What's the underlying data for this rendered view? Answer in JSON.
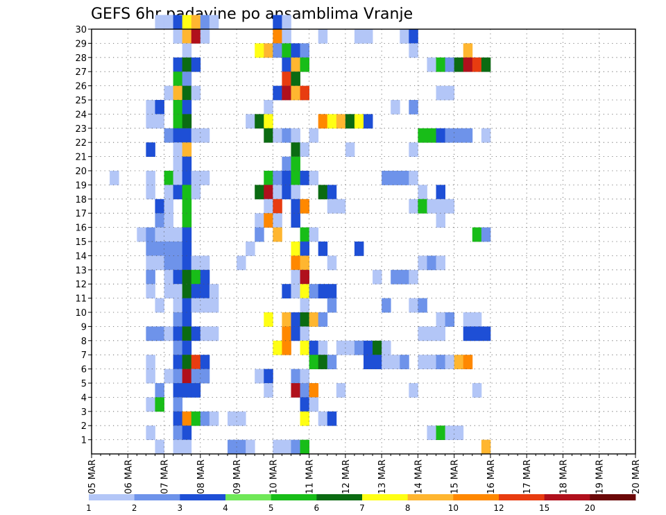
{
  "chart_data": {
    "type": "heatmap",
    "title": "GEFS 6hr padavine po ansamblima Vranje",
    "x_ticks": [
      "05 MAR",
      "06 MAR",
      "07 MAR",
      "08 MAR",
      "09 MAR",
      "10 MAR",
      "11 MAR",
      "12 MAR",
      "13 MAR",
      "14 MAR",
      "15 MAR",
      "16 MAR",
      "17 MAR",
      "18 MAR",
      "19 MAR",
      "20 MAR"
    ],
    "y_ticks": [
      "1",
      "2",
      "3",
      "4",
      "5",
      "6",
      "7",
      "8",
      "9",
      "10",
      "11",
      "12",
      "13",
      "14",
      "15",
      "16",
      "17",
      "18",
      "19",
      "20",
      "21",
      "22",
      "23",
      "24",
      "25",
      "26",
      "27",
      "28",
      "29",
      "30"
    ],
    "y_range": [
      0,
      30
    ],
    "grid": true,
    "legend": {
      "placement": "bottom",
      "labels": [
        "1",
        "2",
        "3",
        "4",
        "5",
        "6",
        "7",
        "8",
        "10",
        "12",
        "15",
        "20"
      ],
      "colors": [
        "#b3c6f7",
        "#6e93ea",
        "#1e4fd6",
        "#70e858",
        "#18bd18",
        "#0b6b12",
        "#ffff14",
        "#ffb630",
        "#ff8800",
        "#e83c10",
        "#b0101c",
        "#6b0808"
      ]
    },
    "cells_note": "x = forecast step index (6-hour steps starting 05 MAR 00z), y = ensemble member, c = color class index into legend colors",
    "cells": [
      [
        7,
        30,
        1
      ],
      [
        8,
        30,
        2
      ],
      [
        8,
        30,
        1
      ],
      [
        9,
        30,
        3
      ],
      [
        10,
        30,
        7
      ],
      [
        11,
        30,
        8
      ],
      [
        12,
        30,
        2
      ],
      [
        13,
        30,
        1
      ],
      [
        20,
        30,
        3
      ],
      [
        21,
        30,
        1
      ],
      [
        9,
        29,
        1
      ],
      [
        10,
        29,
        8
      ],
      [
        11,
        29,
        11
      ],
      [
        12,
        29,
        1
      ],
      [
        20,
        29,
        9
      ],
      [
        21,
        29,
        1
      ],
      [
        25,
        29,
        1
      ],
      [
        29,
        29,
        1
      ],
      [
        30,
        29,
        1
      ],
      [
        34,
        29,
        1
      ],
      [
        35,
        29,
        3
      ],
      [
        10,
        28,
        1
      ],
      [
        18,
        28,
        7
      ],
      [
        19,
        28,
        8
      ],
      [
        20,
        28,
        2
      ],
      [
        21,
        28,
        5
      ],
      [
        22,
        28,
        3
      ],
      [
        23,
        28,
        2
      ],
      [
        35,
        28,
        1
      ],
      [
        41,
        28,
        8
      ],
      [
        9,
        27,
        3
      ],
      [
        10,
        27,
        6
      ],
      [
        11,
        27,
        3
      ],
      [
        21,
        27,
        3
      ],
      [
        22,
        27,
        8
      ],
      [
        23,
        27,
        5
      ],
      [
        37,
        27,
        1
      ],
      [
        38,
        27,
        5
      ],
      [
        39,
        27,
        2
      ],
      [
        40,
        27,
        6
      ],
      [
        41,
        27,
        11
      ],
      [
        42,
        27,
        10
      ],
      [
        43,
        27,
        6
      ],
      [
        9,
        26,
        5
      ],
      [
        10,
        26,
        2
      ],
      [
        21,
        26,
        10
      ],
      [
        22,
        26,
        6
      ],
      [
        8,
        25,
        1
      ],
      [
        9,
        25,
        8
      ],
      [
        10,
        25,
        6
      ],
      [
        11,
        25,
        1
      ],
      [
        20,
        25,
        3
      ],
      [
        21,
        25,
        11
      ],
      [
        22,
        25,
        8
      ],
      [
        23,
        25,
        10
      ],
      [
        38,
        25,
        1
      ],
      [
        39,
        25,
        1
      ],
      [
        6,
        24,
        1
      ],
      [
        7,
        24,
        3
      ],
      [
        9,
        24,
        5
      ],
      [
        10,
        24,
        3
      ],
      [
        19,
        24,
        1
      ],
      [
        33,
        24,
        1
      ],
      [
        35,
        24,
        2
      ],
      [
        6,
        23,
        1
      ],
      [
        7,
        23,
        1
      ],
      [
        9,
        23,
        5
      ],
      [
        10,
        23,
        6
      ],
      [
        17,
        23,
        1
      ],
      [
        18,
        23,
        6
      ],
      [
        19,
        23,
        7
      ],
      [
        25,
        23,
        9
      ],
      [
        26,
        23,
        7
      ],
      [
        27,
        23,
        8
      ],
      [
        28,
        23,
        6
      ],
      [
        29,
        23,
        7
      ],
      [
        30,
        23,
        3
      ],
      [
        8,
        22,
        2
      ],
      [
        9,
        22,
        3
      ],
      [
        10,
        22,
        3
      ],
      [
        11,
        22,
        1
      ],
      [
        12,
        22,
        1
      ],
      [
        19,
        22,
        6
      ],
      [
        20,
        22,
        1
      ],
      [
        21,
        22,
        2
      ],
      [
        22,
        22,
        1
      ],
      [
        24,
        22,
        1
      ],
      [
        36,
        22,
        5
      ],
      [
        37,
        22,
        5
      ],
      [
        38,
        22,
        3
      ],
      [
        39,
        22,
        2
      ],
      [
        40,
        22,
        2
      ],
      [
        41,
        22,
        2
      ],
      [
        43,
        22,
        1
      ],
      [
        6,
        21,
        3
      ],
      [
        9,
        21,
        1
      ],
      [
        10,
        21,
        8
      ],
      [
        22,
        21,
        6
      ],
      [
        23,
        21,
        1
      ],
      [
        28,
        21,
        1
      ],
      [
        35,
        21,
        1
      ],
      [
        9,
        20,
        1
      ],
      [
        10,
        20,
        3
      ],
      [
        21,
        20,
        2
      ],
      [
        22,
        20,
        5
      ],
      [
        2,
        19,
        1
      ],
      [
        6,
        19,
        1
      ],
      [
        8,
        19,
        5
      ],
      [
        9,
        19,
        1
      ],
      [
        10,
        19,
        3
      ],
      [
        11,
        19,
        1
      ],
      [
        12,
        19,
        1
      ],
      [
        19,
        19,
        5
      ],
      [
        20,
        19,
        2
      ],
      [
        21,
        19,
        3
      ],
      [
        22,
        19,
        5
      ],
      [
        23,
        19,
        3
      ],
      [
        24,
        19,
        1
      ],
      [
        32,
        19,
        2
      ],
      [
        33,
        19,
        2
      ],
      [
        34,
        19,
        2
      ],
      [
        35,
        19,
        1
      ],
      [
        6,
        18,
        1
      ],
      [
        8,
        18,
        1
      ],
      [
        9,
        18,
        3
      ],
      [
        10,
        18,
        5
      ],
      [
        11,
        18,
        1
      ],
      [
        18,
        18,
        6
      ],
      [
        19,
        18,
        11
      ],
      [
        20,
        18,
        1
      ],
      [
        21,
        18,
        3
      ],
      [
        22,
        18,
        1
      ],
      [
        25,
        18,
        6
      ],
      [
        26,
        18,
        3
      ],
      [
        36,
        18,
        1
      ],
      [
        38,
        18,
        3
      ],
      [
        7,
        17,
        3
      ],
      [
        8,
        17,
        1
      ],
      [
        10,
        17,
        5
      ],
      [
        19,
        17,
        1
      ],
      [
        20,
        17,
        10
      ],
      [
        22,
        17,
        3
      ],
      [
        23,
        17,
        9
      ],
      [
        26,
        17,
        1
      ],
      [
        27,
        17,
        1
      ],
      [
        35,
        17,
        1
      ],
      [
        36,
        17,
        5
      ],
      [
        37,
        17,
        1
      ],
      [
        38,
        17,
        1
      ],
      [
        39,
        17,
        1
      ],
      [
        7,
        16,
        2
      ],
      [
        8,
        16,
        1
      ],
      [
        10,
        16,
        5
      ],
      [
        18,
        16,
        1
      ],
      [
        19,
        16,
        9
      ],
      [
        20,
        16,
        1
      ],
      [
        22,
        16,
        3
      ],
      [
        38,
        16,
        1
      ],
      [
        5,
        15,
        1
      ],
      [
        6,
        15,
        2
      ],
      [
        7,
        15,
        1
      ],
      [
        8,
        15,
        1
      ],
      [
        9,
        15,
        1
      ],
      [
        10,
        15,
        3
      ],
      [
        18,
        15,
        2
      ],
      [
        20,
        15,
        8
      ],
      [
        23,
        15,
        5
      ],
      [
        24,
        15,
        1
      ],
      [
        42,
        15,
        5
      ],
      [
        43,
        15,
        2
      ],
      [
        6,
        14,
        2
      ],
      [
        7,
        14,
        2
      ],
      [
        8,
        14,
        2
      ],
      [
        9,
        14,
        2
      ],
      [
        10,
        14,
        3
      ],
      [
        17,
        14,
        1
      ],
      [
        22,
        14,
        7
      ],
      [
        23,
        14,
        3
      ],
      [
        25,
        14,
        3
      ],
      [
        29,
        14,
        3
      ],
      [
        6,
        13,
        1
      ],
      [
        7,
        13,
        1
      ],
      [
        8,
        13,
        2
      ],
      [
        9,
        13,
        2
      ],
      [
        10,
        13,
        3
      ],
      [
        11,
        13,
        1
      ],
      [
        12,
        13,
        1
      ],
      [
        16,
        13,
        1
      ],
      [
        22,
        13,
        9
      ],
      [
        23,
        13,
        8
      ],
      [
        26,
        13,
        1
      ],
      [
        36,
        13,
        1
      ],
      [
        37,
        13,
        2
      ],
      [
        38,
        13,
        1
      ],
      [
        6,
        12,
        2
      ],
      [
        8,
        12,
        1
      ],
      [
        9,
        12,
        3
      ],
      [
        10,
        12,
        6
      ],
      [
        11,
        12,
        5
      ],
      [
        12,
        12,
        3
      ],
      [
        22,
        12,
        1
      ],
      [
        23,
        12,
        11
      ],
      [
        31,
        12,
        1
      ],
      [
        33,
        12,
        2
      ],
      [
        34,
        12,
        2
      ],
      [
        35,
        12,
        1
      ],
      [
        6,
        11,
        1
      ],
      [
        8,
        11,
        1
      ],
      [
        9,
        11,
        1
      ],
      [
        10,
        11,
        6
      ],
      [
        11,
        11,
        3
      ],
      [
        12,
        11,
        3
      ],
      [
        13,
        11,
        1
      ],
      [
        21,
        11,
        3
      ],
      [
        22,
        11,
        1
      ],
      [
        23,
        11,
        7
      ],
      [
        24,
        11,
        2
      ],
      [
        25,
        11,
        3
      ],
      [
        26,
        11,
        3
      ],
      [
        7,
        10,
        1
      ],
      [
        9,
        10,
        1
      ],
      [
        10,
        10,
        3
      ],
      [
        11,
        10,
        1
      ],
      [
        12,
        10,
        1
      ],
      [
        13,
        10,
        1
      ],
      [
        23,
        10,
        1
      ],
      [
        26,
        10,
        2
      ],
      [
        32,
        10,
        2
      ],
      [
        35,
        10,
        1
      ],
      [
        36,
        10,
        2
      ],
      [
        9,
        9,
        2
      ],
      [
        10,
        9,
        3
      ],
      [
        19,
        9,
        7
      ],
      [
        21,
        9,
        8
      ],
      [
        22,
        9,
        3
      ],
      [
        23,
        9,
        6
      ],
      [
        24,
        9,
        8
      ],
      [
        25,
        9,
        2
      ],
      [
        38,
        9,
        1
      ],
      [
        39,
        9,
        2
      ],
      [
        41,
        9,
        1
      ],
      [
        42,
        9,
        1
      ],
      [
        6,
        8,
        2
      ],
      [
        7,
        8,
        2
      ],
      [
        8,
        8,
        1
      ],
      [
        9,
        8,
        3
      ],
      [
        10,
        8,
        6
      ],
      [
        11,
        8,
        3
      ],
      [
        12,
        8,
        1
      ],
      [
        13,
        8,
        1
      ],
      [
        21,
        8,
        9
      ],
      [
        22,
        8,
        3
      ],
      [
        23,
        8,
        1
      ],
      [
        36,
        8,
        1
      ],
      [
        37,
        8,
        1
      ],
      [
        38,
        8,
        1
      ],
      [
        41,
        8,
        3
      ],
      [
        42,
        8,
        3
      ],
      [
        43,
        8,
        3
      ],
      [
        9,
        7,
        2
      ],
      [
        10,
        7,
        3
      ],
      [
        20,
        7,
        7
      ],
      [
        21,
        7,
        9
      ],
      [
        23,
        7,
        7
      ],
      [
        24,
        7,
        3
      ],
      [
        25,
        7,
        1
      ],
      [
        27,
        7,
        1
      ],
      [
        28,
        7,
        1
      ],
      [
        29,
        7,
        2
      ],
      [
        30,
        7,
        3
      ],
      [
        31,
        7,
        6
      ],
      [
        32,
        7,
        1
      ],
      [
        6,
        6,
        1
      ],
      [
        9,
        6,
        3
      ],
      [
        10,
        6,
        6
      ],
      [
        11,
        6,
        10
      ],
      [
        12,
        6,
        3
      ],
      [
        24,
        6,
        5
      ],
      [
        25,
        6,
        6
      ],
      [
        26,
        6,
        2
      ],
      [
        30,
        6,
        3
      ],
      [
        31,
        6,
        3
      ],
      [
        32,
        6,
        1
      ],
      [
        33,
        6,
        1
      ],
      [
        34,
        6,
        2
      ],
      [
        36,
        6,
        1
      ],
      [
        37,
        6,
        1
      ],
      [
        38,
        6,
        2
      ],
      [
        39,
        6,
        1
      ],
      [
        40,
        6,
        8
      ],
      [
        41,
        6,
        9
      ],
      [
        6,
        5,
        1
      ],
      [
        8,
        5,
        1
      ],
      [
        9,
        5,
        2
      ],
      [
        10,
        5,
        11
      ],
      [
        11,
        5,
        2
      ],
      [
        12,
        5,
        2
      ],
      [
        18,
        5,
        1
      ],
      [
        19,
        5,
        3
      ],
      [
        22,
        5,
        2
      ],
      [
        23,
        5,
        1
      ],
      [
        7,
        4,
        2
      ],
      [
        9,
        4,
        3
      ],
      [
        10,
        4,
        3
      ],
      [
        11,
        4,
        3
      ],
      [
        19,
        4,
        1
      ],
      [
        22,
        4,
        11
      ],
      [
        23,
        4,
        2
      ],
      [
        24,
        4,
        9
      ],
      [
        27,
        4,
        1
      ],
      [
        35,
        4,
        1
      ],
      [
        42,
        4,
        1
      ],
      [
        6,
        3,
        1
      ],
      [
        7,
        3,
        5
      ],
      [
        9,
        3,
        2
      ],
      [
        23,
        3,
        3
      ],
      [
        24,
        3,
        1
      ],
      [
        9,
        2,
        3
      ],
      [
        10,
        2,
        9
      ],
      [
        11,
        2,
        5
      ],
      [
        12,
        2,
        2
      ],
      [
        13,
        2,
        1
      ],
      [
        15,
        2,
        1
      ],
      [
        16,
        2,
        1
      ],
      [
        23,
        2,
        7
      ],
      [
        25,
        2,
        1
      ],
      [
        26,
        2,
        3
      ],
      [
        6,
        1,
        1
      ],
      [
        9,
        1,
        2
      ],
      [
        10,
        1,
        3
      ],
      [
        37,
        1,
        1
      ],
      [
        38,
        1,
        5
      ],
      [
        39,
        1,
        1
      ],
      [
        40,
        1,
        1
      ],
      [
        7,
        0,
        1
      ],
      [
        9,
        0,
        1
      ],
      [
        10,
        0,
        1
      ],
      [
        15,
        0,
        2
      ],
      [
        16,
        0,
        2
      ],
      [
        17,
        0,
        1
      ],
      [
        20,
        0,
        1
      ],
      [
        21,
        0,
        1
      ],
      [
        22,
        0,
        2
      ],
      [
        23,
        0,
        5
      ],
      [
        43,
        0,
        8
      ]
    ]
  }
}
